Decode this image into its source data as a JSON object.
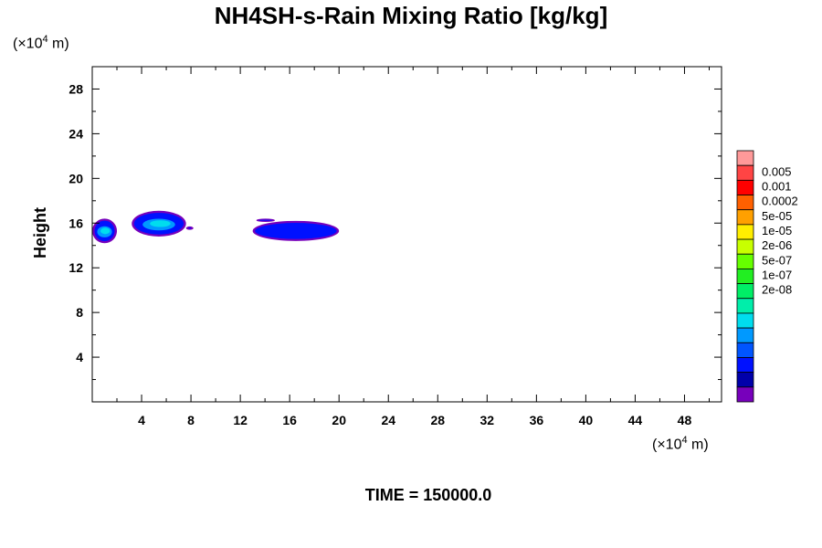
{
  "chart_data": {
    "type": "heatmap",
    "title": "NH4SH-s-Rain Mixing Ratio [kg/kg]",
    "ylabel": "Height",
    "xlabel": "",
    "x_unit": "(×10⁴ m)",
    "y_unit": "(×10⁴ m)",
    "x_unit_base": "(×10",
    "x_unit_exp": "4",
    "x_unit_tail": " m)",
    "y_unit_base": "(×10",
    "y_unit_exp": "4",
    "y_unit_tail": " m)",
    "xlim": [
      0,
      51
    ],
    "ylim": [
      0,
      30
    ],
    "xticks": [
      4,
      8,
      12,
      16,
      20,
      24,
      28,
      32,
      36,
      40,
      44,
      48
    ],
    "yticks": [
      4,
      8,
      12,
      16,
      20,
      24,
      28
    ],
    "grid": false,
    "colorbar": {
      "labels": [
        "0.005",
        "0.001",
        "0.0002",
        "5e-05",
        "1e-05",
        "2e-06",
        "5e-07",
        "1e-07",
        "2e-08"
      ],
      "colors_top_to_bottom": [
        "#ff9999",
        "#ff4444",
        "#ff0000",
        "#ff6000",
        "#ffa000",
        "#ffee00",
        "#c8ff00",
        "#66ff00",
        "#22ee22",
        "#00ee66",
        "#00eeaa",
        "#00ddee",
        "#0099ff",
        "#0055ff",
        "#0011ff",
        "#0000aa",
        "#7700bb"
      ]
    },
    "regions": [
      {
        "x": [
          0.0,
          2.0
        ],
        "y": [
          14.2,
          16.4
        ],
        "level": "5e-07"
      },
      {
        "x": [
          3.2,
          7.6
        ],
        "y": [
          14.8,
          17.1
        ],
        "level": "5e-07"
      },
      {
        "x": [
          7.6,
          8.2
        ],
        "y": [
          15.4,
          15.7
        ],
        "level": "1e-07"
      },
      {
        "x": [
          13.3,
          14.8
        ],
        "y": [
          16.1,
          16.4
        ],
        "level": "1e-07"
      },
      {
        "x": [
          13.0,
          20.0
        ],
        "y": [
          14.4,
          16.2
        ],
        "level": "1e-07"
      }
    ]
  },
  "footer": {
    "time_label": "TIME = 150000.0"
  }
}
